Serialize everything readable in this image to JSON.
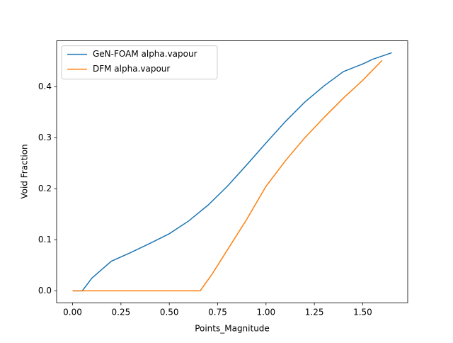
{
  "chart_data": {
    "type": "line",
    "xlabel": "Points_Magnitude",
    "ylabel": "Void Fraction",
    "series": [
      {
        "name": "GeN-FOAM alpha.vapour",
        "color": "#1f77b4",
        "x": [
          0,
          0.05,
          0.1,
          0.2,
          0.3,
          0.4,
          0.5,
          0.6,
          0.7,
          0.8,
          0.9,
          1.0,
          1.1,
          1.2,
          1.3,
          1.4,
          1.5,
          1.55,
          1.65
        ],
        "values": [
          0,
          0,
          0.025,
          0.058,
          0.075,
          0.093,
          0.112,
          0.137,
          0.168,
          0.205,
          0.247,
          0.29,
          0.332,
          0.37,
          0.402,
          0.43,
          0.445,
          0.454,
          0.467
        ]
      },
      {
        "name": "DFM alpha.vapour",
        "color": "#ff7f0e",
        "x": [
          0,
          0.66,
          0.72,
          0.8,
          0.9,
          1.0,
          1.1,
          1.2,
          1.3,
          1.4,
          1.5,
          1.6
        ],
        "values": [
          0,
          0,
          0.032,
          0.08,
          0.14,
          0.205,
          0.255,
          0.3,
          0.34,
          0.378,
          0.413,
          0.452
        ]
      }
    ],
    "xlim": [
      -0.0825,
      1.7325
    ],
    "ylim": [
      -0.0234,
      0.4904
    ],
    "xticks": [
      {
        "value": 0,
        "label": "0.00"
      },
      {
        "value": 0.25,
        "label": "0.25"
      },
      {
        "value": 0.5,
        "label": "0.50"
      },
      {
        "value": 0.75,
        "label": "0.75"
      },
      {
        "value": 1,
        "label": "1.00"
      },
      {
        "value": 1.25,
        "label": "1.25"
      },
      {
        "value": 1.5,
        "label": "1.50"
      }
    ],
    "yticks": [
      {
        "value": 0,
        "label": "0.0"
      },
      0.1,
      0.2,
      0.3,
      0.4
    ],
    "legend": "upper left",
    "grid": false
  }
}
